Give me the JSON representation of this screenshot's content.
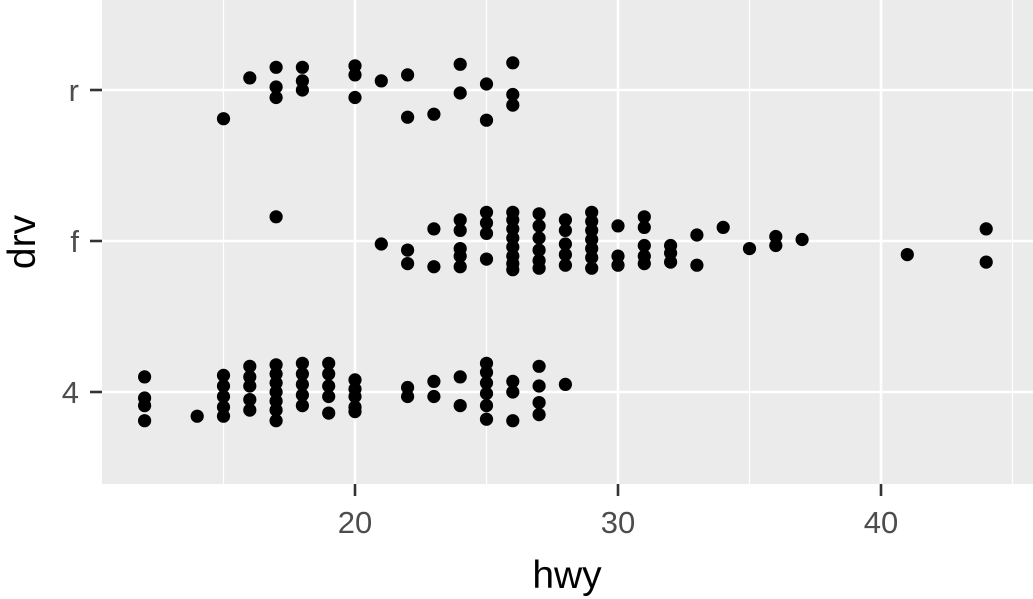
{
  "chart_data": {
    "type": "scatter",
    "title": "",
    "xlabel": "hwy",
    "ylabel": "drv",
    "xlim": [
      10.4,
      45.6
    ],
    "x_ticks": [
      20,
      30,
      40
    ],
    "x_tick_labels": [
      "20",
      "30",
      "40"
    ],
    "categories": [
      "4",
      "f",
      "r"
    ],
    "grid": true,
    "jitter": true,
    "colors": {
      "panel_background": "#ebebeb",
      "grid": "#ffffff",
      "point": "#000000",
      "tick_label": "#4d4d4d",
      "axis_title": "#000000"
    },
    "points": [
      {
        "x": 17,
        "drv": "r",
        "offset": 0.15
      },
      {
        "x": 17,
        "drv": "r",
        "offset": -0.05
      },
      {
        "x": 15,
        "drv": "r",
        "offset": -0.19
      },
      {
        "x": 16,
        "drv": "r",
        "offset": 0.08
      },
      {
        "x": 17,
        "drv": "r",
        "offset": 0.02
      },
      {
        "x": 18,
        "drv": "r",
        "offset": 0.15
      },
      {
        "x": 18,
        "drv": "r",
        "offset": 0.06
      },
      {
        "x": 18,
        "drv": "r",
        "offset": 0.0
      },
      {
        "x": 20,
        "drv": "r",
        "offset": 0.16
      },
      {
        "x": 20,
        "drv": "r",
        "offset": 0.1
      },
      {
        "x": 20,
        "drv": "r",
        "offset": -0.05
      },
      {
        "x": 21,
        "drv": "r",
        "offset": 0.06
      },
      {
        "x": 22,
        "drv": "r",
        "offset": 0.1
      },
      {
        "x": 22,
        "drv": "r",
        "offset": -0.18
      },
      {
        "x": 23,
        "drv": "r",
        "offset": -0.16
      },
      {
        "x": 24,
        "drv": "r",
        "offset": 0.17
      },
      {
        "x": 24,
        "drv": "r",
        "offset": -0.02
      },
      {
        "x": 25,
        "drv": "r",
        "offset": 0.04
      },
      {
        "x": 25,
        "drv": "r",
        "offset": -0.2
      },
      {
        "x": 26,
        "drv": "r",
        "offset": 0.18
      },
      {
        "x": 26,
        "drv": "r",
        "offset": -0.03
      },
      {
        "x": 26,
        "drv": "r",
        "offset": -0.1
      },
      {
        "x": 17,
        "drv": "f",
        "offset": 0.16
      },
      {
        "x": 21,
        "drv": "f",
        "offset": -0.02
      },
      {
        "x": 22,
        "drv": "f",
        "offset": -0.06
      },
      {
        "x": 22,
        "drv": "f",
        "offset": -0.15
      },
      {
        "x": 23,
        "drv": "f",
        "offset": 0.08
      },
      {
        "x": 23,
        "drv": "f",
        "offset": -0.17
      },
      {
        "x": 24,
        "drv": "f",
        "offset": 0.14
      },
      {
        "x": 24,
        "drv": "f",
        "offset": 0.07
      },
      {
        "x": 24,
        "drv": "f",
        "offset": -0.05
      },
      {
        "x": 24,
        "drv": "f",
        "offset": -0.1
      },
      {
        "x": 24,
        "drv": "f",
        "offset": -0.17
      },
      {
        "x": 25,
        "drv": "f",
        "offset": 0.19
      },
      {
        "x": 25,
        "drv": "f",
        "offset": 0.12
      },
      {
        "x": 25,
        "drv": "f",
        "offset": 0.05
      },
      {
        "x": 25,
        "drv": "f",
        "offset": -0.12
      },
      {
        "x": 26,
        "drv": "f",
        "offset": 0.19
      },
      {
        "x": 26,
        "drv": "f",
        "offset": 0.14
      },
      {
        "x": 26,
        "drv": "f",
        "offset": 0.08
      },
      {
        "x": 26,
        "drv": "f",
        "offset": 0.02
      },
      {
        "x": 26,
        "drv": "f",
        "offset": -0.04
      },
      {
        "x": 26,
        "drv": "f",
        "offset": -0.1
      },
      {
        "x": 26,
        "drv": "f",
        "offset": -0.15
      },
      {
        "x": 26,
        "drv": "f",
        "offset": -0.19
      },
      {
        "x": 27,
        "drv": "f",
        "offset": 0.18
      },
      {
        "x": 27,
        "drv": "f",
        "offset": 0.1
      },
      {
        "x": 27,
        "drv": "f",
        "offset": 0.02
      },
      {
        "x": 27,
        "drv": "f",
        "offset": -0.06
      },
      {
        "x": 27,
        "drv": "f",
        "offset": -0.13
      },
      {
        "x": 27,
        "drv": "f",
        "offset": -0.18
      },
      {
        "x": 28,
        "drv": "f",
        "offset": 0.14
      },
      {
        "x": 28,
        "drv": "f",
        "offset": 0.07
      },
      {
        "x": 28,
        "drv": "f",
        "offset": -0.02
      },
      {
        "x": 28,
        "drv": "f",
        "offset": -0.09
      },
      {
        "x": 28,
        "drv": "f",
        "offset": -0.16
      },
      {
        "x": 29,
        "drv": "f",
        "offset": 0.19
      },
      {
        "x": 29,
        "drv": "f",
        "offset": 0.13
      },
      {
        "x": 29,
        "drv": "f",
        "offset": 0.07
      },
      {
        "x": 29,
        "drv": "f",
        "offset": 0.01
      },
      {
        "x": 29,
        "drv": "f",
        "offset": -0.05
      },
      {
        "x": 29,
        "drv": "f",
        "offset": -0.11
      },
      {
        "x": 29,
        "drv": "f",
        "offset": -0.18
      },
      {
        "x": 30,
        "drv": "f",
        "offset": 0.1
      },
      {
        "x": 30,
        "drv": "f",
        "offset": -0.1
      },
      {
        "x": 30,
        "drv": "f",
        "offset": -0.16
      },
      {
        "x": 31,
        "drv": "f",
        "offset": 0.16
      },
      {
        "x": 31,
        "drv": "f",
        "offset": 0.09
      },
      {
        "x": 31,
        "drv": "f",
        "offset": -0.03
      },
      {
        "x": 31,
        "drv": "f",
        "offset": -0.1
      },
      {
        "x": 31,
        "drv": "f",
        "offset": -0.15
      },
      {
        "x": 32,
        "drv": "f",
        "offset": -0.03
      },
      {
        "x": 32,
        "drv": "f",
        "offset": -0.08
      },
      {
        "x": 32,
        "drv": "f",
        "offset": -0.14
      },
      {
        "x": 33,
        "drv": "f",
        "offset": 0.04
      },
      {
        "x": 33,
        "drv": "f",
        "offset": -0.16
      },
      {
        "x": 34,
        "drv": "f",
        "offset": 0.09
      },
      {
        "x": 35,
        "drv": "f",
        "offset": -0.05
      },
      {
        "x": 36,
        "drv": "f",
        "offset": 0.03
      },
      {
        "x": 36,
        "drv": "f",
        "offset": -0.03
      },
      {
        "x": 37,
        "drv": "f",
        "offset": 0.01
      },
      {
        "x": 41,
        "drv": "f",
        "offset": -0.09
      },
      {
        "x": 44,
        "drv": "f",
        "offset": 0.08
      },
      {
        "x": 44,
        "drv": "f",
        "offset": -0.14
      },
      {
        "x": 12,
        "drv": "4",
        "offset": 0.1
      },
      {
        "x": 12,
        "drv": "4",
        "offset": -0.04
      },
      {
        "x": 12,
        "drv": "4",
        "offset": -0.09
      },
      {
        "x": 12,
        "drv": "4",
        "offset": -0.19
      },
      {
        "x": 14,
        "drv": "4",
        "offset": -0.16
      },
      {
        "x": 15,
        "drv": "4",
        "offset": 0.11
      },
      {
        "x": 15,
        "drv": "4",
        "offset": 0.04
      },
      {
        "x": 15,
        "drv": "4",
        "offset": -0.03
      },
      {
        "x": 15,
        "drv": "4",
        "offset": -0.1
      },
      {
        "x": 15,
        "drv": "4",
        "offset": -0.16
      },
      {
        "x": 16,
        "drv": "4",
        "offset": 0.17
      },
      {
        "x": 16,
        "drv": "4",
        "offset": 0.1
      },
      {
        "x": 16,
        "drv": "4",
        "offset": 0.04
      },
      {
        "x": 16,
        "drv": "4",
        "offset": -0.05
      },
      {
        "x": 16,
        "drv": "4",
        "offset": -0.12
      },
      {
        "x": 17,
        "drv": "4",
        "offset": 0.18
      },
      {
        "x": 17,
        "drv": "4",
        "offset": 0.12
      },
      {
        "x": 17,
        "drv": "4",
        "offset": 0.06
      },
      {
        "x": 17,
        "drv": "4",
        "offset": 0.0
      },
      {
        "x": 17,
        "drv": "4",
        "offset": -0.06
      },
      {
        "x": 17,
        "drv": "4",
        "offset": -0.12
      },
      {
        "x": 17,
        "drv": "4",
        "offset": -0.19
      },
      {
        "x": 18,
        "drv": "4",
        "offset": 0.19
      },
      {
        "x": 18,
        "drv": "4",
        "offset": 0.12
      },
      {
        "x": 18,
        "drv": "4",
        "offset": 0.05
      },
      {
        "x": 18,
        "drv": "4",
        "offset": -0.02
      },
      {
        "x": 18,
        "drv": "4",
        "offset": -0.09
      },
      {
        "x": 19,
        "drv": "4",
        "offset": 0.19
      },
      {
        "x": 19,
        "drv": "4",
        "offset": 0.12
      },
      {
        "x": 19,
        "drv": "4",
        "offset": 0.04
      },
      {
        "x": 19,
        "drv": "4",
        "offset": -0.03
      },
      {
        "x": 19,
        "drv": "4",
        "offset": -0.14
      },
      {
        "x": 20,
        "drv": "4",
        "offset": 0.08
      },
      {
        "x": 20,
        "drv": "4",
        "offset": 0.02
      },
      {
        "x": 20,
        "drv": "4",
        "offset": -0.03
      },
      {
        "x": 20,
        "drv": "4",
        "offset": -0.1
      },
      {
        "x": 20,
        "drv": "4",
        "offset": -0.13
      },
      {
        "x": 22,
        "drv": "4",
        "offset": 0.03
      },
      {
        "x": 22,
        "drv": "4",
        "offset": -0.03
      },
      {
        "x": 23,
        "drv": "4",
        "offset": 0.07
      },
      {
        "x": 23,
        "drv": "4",
        "offset": -0.03
      },
      {
        "x": 24,
        "drv": "4",
        "offset": 0.1
      },
      {
        "x": 24,
        "drv": "4",
        "offset": -0.09
      },
      {
        "x": 25,
        "drv": "4",
        "offset": 0.19
      },
      {
        "x": 25,
        "drv": "4",
        "offset": 0.13
      },
      {
        "x": 25,
        "drv": "4",
        "offset": 0.06
      },
      {
        "x": 25,
        "drv": "4",
        "offset": -0.01
      },
      {
        "x": 25,
        "drv": "4",
        "offset": -0.09
      },
      {
        "x": 25,
        "drv": "4",
        "offset": -0.18
      },
      {
        "x": 26,
        "drv": "4",
        "offset": 0.07
      },
      {
        "x": 26,
        "drv": "4",
        "offset": 0.0
      },
      {
        "x": 26,
        "drv": "4",
        "offset": -0.19
      },
      {
        "x": 27,
        "drv": "4",
        "offset": 0.17
      },
      {
        "x": 27,
        "drv": "4",
        "offset": 0.04
      },
      {
        "x": 27,
        "drv": "4",
        "offset": -0.07
      },
      {
        "x": 27,
        "drv": "4",
        "offset": -0.15
      },
      {
        "x": 28,
        "drv": "4",
        "offset": 0.05
      }
    ]
  }
}
